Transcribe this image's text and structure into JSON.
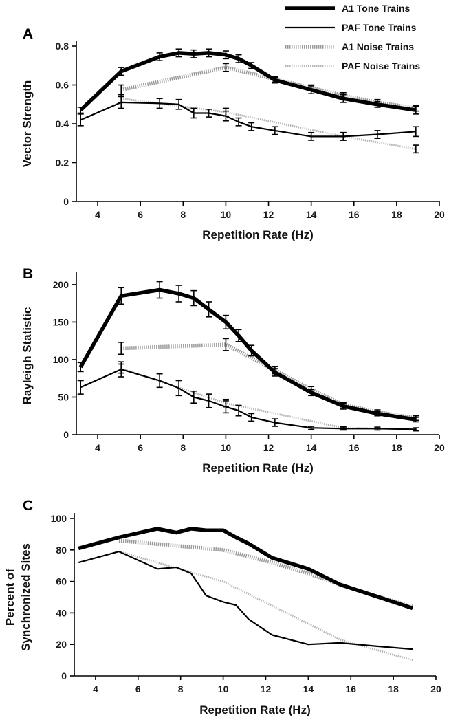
{
  "colors": {
    "a1": "#000000",
    "paf": "#000000",
    "a1_noise": "#9a9a9a",
    "paf_noise": "#b4b4b4"
  },
  "legend": [
    {
      "label": "A1 Tone Trains",
      "series": "a1_tone"
    },
    {
      "label": "PAF Tone Trains",
      "series": "paf_tone"
    },
    {
      "label": "A1 Noise Trains",
      "series": "a1_noise"
    },
    {
      "label": "PAF Noise Trains",
      "series": "paf_noise"
    }
  ],
  "chart_data": [
    {
      "type": "line",
      "panel": "A",
      "title": "",
      "xlabel": "Repetition Rate (Hz)",
      "ylabel": [
        "Vector Strength"
      ],
      "xlim": [
        3,
        20
      ],
      "ylim": [
        0,
        0.8
      ],
      "xticks": [
        4,
        6,
        8,
        10,
        12,
        14,
        16,
        18,
        20
      ],
      "xtick_labels": [
        "4",
        "6",
        "8",
        "10",
        "12",
        "14",
        "16",
        "18",
        "20"
      ],
      "yticks": [
        0,
        0.2,
        0.4,
        0.6,
        0.8
      ],
      "ytick_labels": [
        "0",
        "0.2",
        "0.4",
        "0.6",
        "0.8"
      ],
      "series": [
        {
          "name": "A1 Tone Trains",
          "key": "a1_tone",
          "x": [
            3.2,
            5.1,
            6.9,
            7.8,
            8.5,
            9.2,
            10.0,
            10.6,
            11.2,
            12.3,
            14.0,
            15.5,
            17.1,
            18.9
          ],
          "y": [
            0.47,
            0.67,
            0.745,
            0.765,
            0.76,
            0.765,
            0.755,
            0.735,
            0.7,
            0.625,
            0.575,
            0.53,
            0.5,
            0.47
          ],
          "err": [
            0.015,
            0.02,
            0.02,
            0.02,
            0.02,
            0.02,
            0.02,
            0.02,
            0.015,
            0.015,
            0.02,
            0.02,
            0.015,
            0.02
          ]
        },
        {
          "name": "PAF Tone Trains",
          "key": "paf_tone",
          "x": [
            3.2,
            5.1,
            6.9,
            7.8,
            8.5,
            9.2,
            10.0,
            10.6,
            11.2,
            12.3,
            14.0,
            15.5,
            17.1,
            18.9
          ],
          "y": [
            0.42,
            0.51,
            0.505,
            0.5,
            0.455,
            0.455,
            0.44,
            0.41,
            0.385,
            0.365,
            0.335,
            0.335,
            0.345,
            0.36
          ],
          "err": [
            0.03,
            0.03,
            0.025,
            0.025,
            0.025,
            0.02,
            0.025,
            0.02,
            0.02,
            0.02,
            0.02,
            0.02,
            0.02,
            0.025
          ]
        },
        {
          "name": "A1 Noise Trains",
          "key": "a1_noise",
          "x": [
            5.1,
            10.0,
            12.3,
            14.0,
            15.5,
            17.1,
            18.9
          ],
          "y": [
            0.575,
            0.69,
            0.63,
            0.585,
            0.545,
            0.51,
            0.48
          ],
          "err": [
            0.025,
            0.02,
            0.015,
            0.015,
            0.015,
            0.015,
            0.015
          ]
        },
        {
          "name": "PAF Noise Trains",
          "key": "paf_noise",
          "x": [
            5.1,
            10.0,
            15.5,
            18.9
          ],
          "y": [
            0.53,
            0.46,
            0.335,
            0.27
          ],
          "err": [
            0.02,
            0.02,
            0.02,
            0.02
          ]
        }
      ]
    },
    {
      "type": "line",
      "panel": "B",
      "title": "",
      "xlabel": "Repetition Rate (Hz)",
      "ylabel": [
        "Rayleigh Statistic"
      ],
      "xlim": [
        3,
        20
      ],
      "ylim": [
        0,
        210
      ],
      "xticks": [
        4,
        6,
        8,
        10,
        12,
        14,
        16,
        18,
        20
      ],
      "xtick_labels": [
        "4",
        "6",
        "8",
        "10",
        "12",
        "14",
        "16",
        "18",
        "20"
      ],
      "yticks": [
        0,
        50,
        100,
        150,
        200
      ],
      "ytick_labels": [
        "0",
        "50",
        "100",
        "150",
        "200"
      ],
      "series": [
        {
          "name": "A1 Tone Trains",
          "key": "a1_tone",
          "x": [
            3.2,
            5.1,
            6.9,
            7.8,
            8.5,
            9.2,
            10.0,
            10.6,
            11.2,
            12.3,
            14.0,
            15.5,
            17.1,
            18.9
          ],
          "y": [
            90,
            185,
            193,
            188,
            182,
            167,
            150,
            132,
            112,
            83,
            56,
            38,
            28,
            20
          ],
          "err": [
            6,
            11,
            11,
            11,
            10,
            10,
            9,
            8,
            7,
            5,
            4,
            4,
            3,
            3
          ]
        },
        {
          "name": "PAF Tone Trains",
          "key": "paf_tone",
          "x": [
            3.2,
            5.1,
            6.9,
            7.8,
            8.5,
            9.2,
            10.0,
            10.6,
            11.2,
            12.3,
            14.0,
            15.5,
            17.1,
            18.9
          ],
          "y": [
            63,
            87,
            72,
            62,
            50,
            45,
            37,
            32,
            23,
            16,
            9,
            8,
            8,
            7
          ],
          "err": [
            9,
            10,
            9,
            10,
            8,
            9,
            8,
            7,
            5,
            5,
            2,
            2,
            2,
            2
          ]
        },
        {
          "name": "A1 Noise Trains",
          "key": "a1_noise",
          "x": [
            5.1,
            10.0,
            12.3,
            14.0,
            15.5,
            17.1,
            18.9
          ],
          "y": [
            115,
            120,
            86,
            60,
            40,
            30,
            22
          ],
          "err": [
            8,
            8,
            5,
            4,
            3,
            3,
            3
          ]
        },
        {
          "name": "PAF Noise Trains",
          "key": "paf_noise",
          "x": [
            5.1,
            10.0,
            15.5,
            18.9
          ],
          "y": [
            88,
            42,
            9,
            7
          ],
          "err": [
            6,
            5,
            2,
            2
          ]
        }
      ]
    },
    {
      "type": "line",
      "panel": "C",
      "title": "",
      "xlabel": "Repetition Rate (Hz)",
      "ylabel": [
        "Percent of",
        "Synchronized Sites"
      ],
      "xlim": [
        3,
        20
      ],
      "ylim": [
        0,
        100
      ],
      "xticks": [
        4,
        6,
        8,
        10,
        12,
        14,
        16,
        18,
        20
      ],
      "xtick_labels": [
        "4",
        "6",
        "8",
        "10",
        "12",
        "14",
        "16",
        "18",
        "20"
      ],
      "yticks": [
        0,
        20,
        40,
        60,
        80,
        100
      ],
      "ytick_labels": [
        "0",
        "20",
        "40",
        "60",
        "80",
        "100"
      ],
      "series": [
        {
          "name": "A1 Tone Trains",
          "key": "a1_tone",
          "x": [
            3.2,
            5.1,
            6.9,
            7.8,
            8.5,
            9.2,
            10.0,
            10.6,
            11.2,
            12.3,
            14.0,
            15.5,
            17.1,
            18.9
          ],
          "y": [
            81,
            88,
            93.5,
            91,
            93.5,
            92.5,
            92.5,
            88,
            84,
            75,
            68,
            58,
            51,
            43
          ]
        },
        {
          "name": "PAF Tone Trains",
          "key": "paf_tone",
          "x": [
            3.2,
            5.1,
            6.9,
            7.8,
            8.5,
            9.2,
            10.0,
            10.6,
            11.2,
            12.3,
            14.0,
            15.5,
            17.1,
            18.9
          ],
          "y": [
            72,
            79,
            68,
            69,
            65,
            51,
            47,
            45,
            36,
            26,
            20,
            21,
            19,
            17
          ]
        },
        {
          "name": "A1 Noise Trains",
          "key": "a1_noise",
          "x": [
            5.1,
            10.0,
            12.3,
            14.0,
            15.5,
            17.1,
            18.9
          ],
          "y": [
            86,
            80,
            72,
            65,
            58,
            51,
            44
          ]
        },
        {
          "name": "PAF Noise Trains",
          "key": "paf_noise",
          "x": [
            5.1,
            10.0,
            15.5,
            18.9
          ],
          "y": [
            79,
            60,
            23,
            10
          ]
        }
      ]
    }
  ]
}
